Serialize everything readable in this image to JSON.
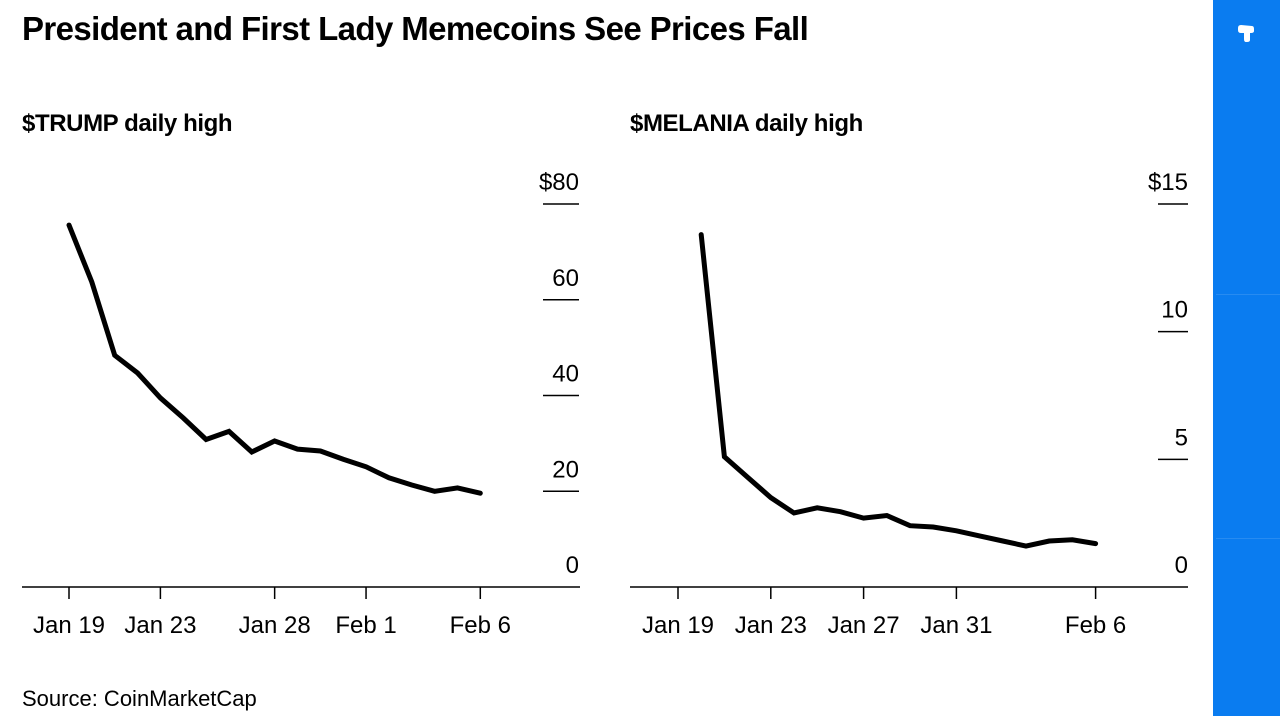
{
  "title": "President and First Lady Memecoins See Prices Fall",
  "source": "Source: CoinMarketCap",
  "sidebar": {
    "logo_icon": "brand-logo-icon",
    "color": "#0a7cf0"
  },
  "chart_data": [
    {
      "type": "line",
      "title": "$TRUMP daily high",
      "xlabel": "",
      "ylabel": "",
      "x": [
        "Jan 19",
        "Jan 20",
        "Jan 21",
        "Jan 22",
        "Jan 23",
        "Jan 24",
        "Jan 25",
        "Jan 26",
        "Jan 27",
        "Jan 28",
        "Jan 29",
        "Jan 30",
        "Jan 31",
        "Feb 1",
        "Feb 2",
        "Feb 3",
        "Feb 4",
        "Feb 5",
        "Feb 6"
      ],
      "series": [
        {
          "name": "$TRUMP",
          "color": "#000000",
          "values": [
            75.6,
            63.7,
            48.4,
            44.7,
            39.5,
            35.3,
            30.8,
            32.5,
            28.2,
            30.5,
            28.8,
            28.4,
            26.7,
            25.1,
            22.8,
            21.3,
            20.0,
            20.7,
            19.6
          ]
        }
      ],
      "x_ticks": [
        "Jan 19",
        "Jan 23",
        "Jan 28",
        "Feb 1",
        "Feb 6"
      ],
      "y_ticks": [
        0,
        20,
        40,
        60,
        80
      ],
      "y_tick_labels": [
        "0",
        "20",
        "40",
        "60",
        "$80"
      ],
      "ylim": [
        0,
        80
      ],
      "x_range_days": [
        -2,
        21.5
      ],
      "grid": false,
      "y_axis_side": "right"
    },
    {
      "type": "line",
      "title": "$MELANIA daily high",
      "xlabel": "",
      "ylabel": "",
      "x": [
        "Jan 20",
        "Jan 21",
        "Jan 22",
        "Jan 23",
        "Jan 24",
        "Jan 25",
        "Jan 26",
        "Jan 27",
        "Jan 28",
        "Jan 29",
        "Jan 30",
        "Jan 31",
        "Feb 1",
        "Feb 2",
        "Feb 3",
        "Feb 4",
        "Feb 5",
        "Feb 6"
      ],
      "series": [
        {
          "name": "$MELANIA",
          "color": "#000000",
          "values": [
            13.8,
            5.1,
            4.3,
            3.5,
            2.9,
            3.1,
            2.95,
            2.7,
            2.8,
            2.4,
            2.35,
            2.2,
            2.0,
            1.8,
            1.6,
            1.8,
            1.85,
            1.7
          ]
        }
      ],
      "x_ticks": [
        "Jan 19",
        "Jan 23",
        "Jan 27",
        "Jan 31",
        "Feb 6"
      ],
      "y_ticks": [
        0,
        5,
        10,
        15
      ],
      "y_tick_labels": [
        "0",
        "5",
        "10",
        "$15"
      ],
      "ylim": [
        0,
        15
      ],
      "x_range_days": [
        -2,
        21.5
      ],
      "grid": false,
      "y_axis_side": "right"
    }
  ]
}
